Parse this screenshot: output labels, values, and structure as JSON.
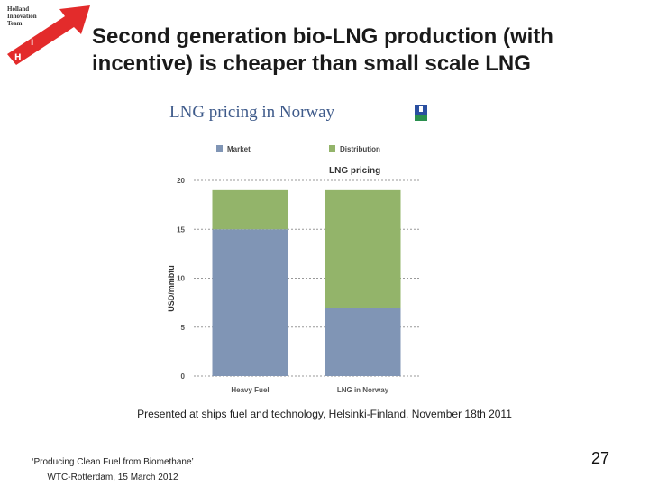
{
  "logo": {
    "lines": [
      "Holland",
      "Innovation",
      "Team"
    ],
    "letters": [
      "H",
      "I",
      "T"
    ],
    "icon": "hit-arrow-logo"
  },
  "slide": {
    "title": "Second generation bio-LNG production (with incentive) is cheaper than small scale LNG",
    "caption": "Presented at ships fuel and technology, Helsinki-Finland, November 18th 2011",
    "footer_line1": "‘Producing Clean Fuel from Biomethane’",
    "footer_line2": "WTC-Rotterdam, 15 March 2012",
    "page_number": "27"
  },
  "chart_header": "LNG pricing in Norway",
  "chart_data": {
    "type": "bar",
    "stacked": true,
    "title": "LNG pricing",
    "ylabel": "USD/mmbtu",
    "xlabel": "",
    "categories": [
      "Heavy Fuel",
      "LNG in Norway"
    ],
    "series": [
      {
        "name": "Market",
        "values": [
          15,
          7
        ],
        "color": "#8095b5"
      },
      {
        "name": "Distribution",
        "values": [
          4,
          12
        ],
        "color": "#93b46a"
      }
    ],
    "ylim": [
      0,
      20
    ],
    "yticks": [
      0,
      5,
      10,
      15,
      20
    ],
    "ytick_labels": [
      "0",
      "5",
      "10",
      "15",
      "20"
    ],
    "grid": true,
    "legend_position": "top"
  }
}
